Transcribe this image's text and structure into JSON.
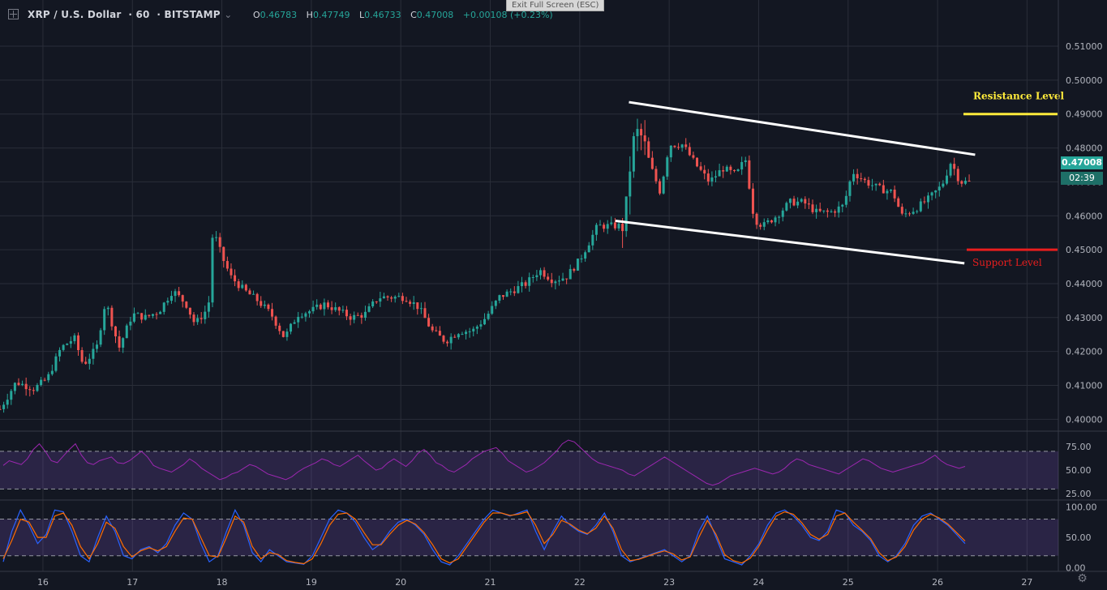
{
  "header": {
    "symbol": "XRP / U.S. Dollar",
    "interval": "60",
    "exchange": "BITSTAMP",
    "open_label": "O",
    "open": "0.46783",
    "high_label": "H",
    "high": "0.47749",
    "low_label": "L",
    "low": "0.46733",
    "close_label": "C",
    "close": "0.47008",
    "change": "+0.00108 (+0.23%)",
    "exit_fullscreen": "Exit Full Screen (ESC)"
  },
  "price_tag": {
    "last": "0.47008",
    "countdown": "02:39"
  },
  "annotations": {
    "resistance": "Resistance Level",
    "support": "Support Level"
  },
  "colors": {
    "bg": "#131722",
    "up": "#26a69a",
    "down": "#ef5350",
    "resistance": "#ffeb3b",
    "support": "#e91e1e",
    "channel": "#ffffff",
    "rsi": "#9c27b0",
    "stoch_k": "#2962ff",
    "stoch_d": "#ff6d00"
  },
  "chart_data": [
    {
      "type": "candlestick",
      "y_ticks": [
        "0.40000",
        "0.41000",
        "0.42000",
        "0.43000",
        "0.44000",
        "0.45000",
        "0.46000",
        "0.47000",
        "0.48000",
        "0.49000",
        "0.50000",
        "0.51000"
      ],
      "x_ticks": [
        "16",
        "17",
        "18",
        "19",
        "20",
        "21",
        "22",
        "23",
        "24",
        "25",
        "26",
        "27"
      ],
      "ylim": [
        0.3965,
        0.5155
      ],
      "xlim": [
        15.52,
        27.35
      ],
      "grid": true,
      "close_path": [
        [
          15.52,
          0.403
        ],
        [
          15.7,
          0.411
        ],
        [
          15.9,
          0.409
        ],
        [
          16.05,
          0.412
        ],
        [
          16.2,
          0.421
        ],
        [
          16.35,
          0.424
        ],
        [
          16.45,
          0.416
        ],
        [
          16.6,
          0.421
        ],
        [
          16.7,
          0.435
        ],
        [
          16.85,
          0.421
        ],
        [
          17.0,
          0.431
        ],
        [
          17.15,
          0.43
        ],
        [
          17.3,
          0.432
        ],
        [
          17.45,
          0.438
        ],
        [
          17.6,
          0.434
        ],
        [
          17.7,
          0.428
        ],
        [
          17.85,
          0.433
        ],
        [
          17.9,
          0.456
        ],
        [
          18.0,
          0.448
        ],
        [
          18.1,
          0.442
        ],
        [
          18.25,
          0.438
        ],
        [
          18.4,
          0.435
        ],
        [
          18.55,
          0.431
        ],
        [
          18.7,
          0.424
        ],
        [
          18.85,
          0.431
        ],
        [
          19.0,
          0.432
        ],
        [
          19.15,
          0.434
        ],
        [
          19.3,
          0.432
        ],
        [
          19.45,
          0.43
        ],
        [
          19.6,
          0.431
        ],
        [
          19.75,
          0.436
        ],
        [
          19.9,
          0.436
        ],
        [
          20.05,
          0.436
        ],
        [
          20.2,
          0.433
        ],
        [
          20.35,
          0.426
        ],
        [
          20.5,
          0.423
        ],
        [
          20.65,
          0.426
        ],
        [
          20.8,
          0.426
        ],
        [
          20.95,
          0.43
        ],
        [
          21.1,
          0.436
        ],
        [
          21.25,
          0.438
        ],
        [
          21.4,
          0.44
        ],
        [
          21.55,
          0.444
        ],
        [
          21.7,
          0.441
        ],
        [
          21.85,
          0.442
        ],
        [
          22.0,
          0.447
        ],
        [
          22.1,
          0.452
        ],
        [
          22.2,
          0.457
        ],
        [
          22.35,
          0.457
        ],
        [
          22.5,
          0.457
        ],
        [
          22.55,
          0.472
        ],
        [
          22.62,
          0.485
        ],
        [
          22.7,
          0.483
        ],
        [
          22.8,
          0.474
        ],
        [
          22.9,
          0.467
        ],
        [
          23.0,
          0.481
        ],
        [
          23.15,
          0.481
        ],
        [
          23.3,
          0.475
        ],
        [
          23.45,
          0.47
        ],
        [
          23.6,
          0.474
        ],
        [
          23.75,
          0.472
        ],
        [
          23.85,
          0.477
        ],
        [
          23.95,
          0.459
        ],
        [
          24.05,
          0.457
        ],
        [
          24.2,
          0.46
        ],
        [
          24.35,
          0.464
        ],
        [
          24.5,
          0.464
        ],
        [
          24.65,
          0.461
        ],
        [
          24.8,
          0.461
        ],
        [
          24.95,
          0.463
        ],
        [
          25.05,
          0.473
        ],
        [
          25.2,
          0.47
        ],
        [
          25.35,
          0.468
        ],
        [
          25.5,
          0.467
        ],
        [
          25.6,
          0.46
        ],
        [
          25.75,
          0.462
        ],
        [
          25.9,
          0.465
        ],
        [
          26.05,
          0.469
        ],
        [
          26.15,
          0.476
        ],
        [
          26.25,
          0.47
        ],
        [
          26.35,
          0.47
        ]
      ],
      "channel_upper": [
        [
          22.55,
          0.4935
        ],
        [
          26.42,
          0.478
        ]
      ],
      "channel_lower": [
        [
          22.4,
          0.4585
        ],
        [
          26.3,
          0.446
        ]
      ],
      "resistance_level": 0.49,
      "support_level": 0.45
    },
    {
      "type": "line",
      "series": [
        {
          "values": [
            55,
            60,
            58,
            56,
            62,
            72,
            78,
            70,
            60,
            58,
            65,
            72,
            78,
            66,
            58,
            56,
            60,
            62,
            64,
            58,
            57,
            60,
            65,
            70,
            64,
            55,
            52,
            50,
            48,
            52,
            56,
            62,
            58,
            52,
            48,
            44,
            40,
            42,
            46,
            48,
            52,
            56,
            54,
            50,
            46,
            44,
            42,
            40,
            43,
            48,
            52,
            55,
            58,
            62,
            60,
            56,
            54,
            58,
            62,
            66,
            60,
            55,
            50,
            52,
            58,
            62,
            58,
            54,
            60,
            68,
            72,
            66,
            58,
            55,
            50,
            48,
            52,
            56,
            62,
            66,
            70,
            72,
            74,
            68,
            60,
            56,
            52,
            48,
            50,
            54,
            58,
            64,
            70,
            78,
            82,
            80,
            74,
            68,
            62,
            58,
            56,
            54,
            52,
            50,
            46,
            44,
            48,
            52,
            56,
            60,
            64,
            60,
            56,
            52,
            48,
            44,
            40,
            36,
            34,
            36,
            40,
            44,
            46,
            48,
            50,
            52,
            50,
            48,
            46,
            48,
            52,
            58,
            62,
            60,
            56,
            54,
            52,
            50,
            48,
            46,
            50,
            54,
            58,
            62,
            60,
            56,
            52,
            50,
            48,
            50,
            52,
            54,
            56,
            58,
            62,
            66,
            60,
            56,
            54,
            52,
            54
          ]
        }
      ],
      "y_ticks": [
        "75.00",
        "50.00",
        "25.00"
      ],
      "ylim": [
        20,
        88
      ],
      "bands": [
        30,
        70
      ]
    },
    {
      "type": "line",
      "series": [
        {
          "values": [
            10,
            60,
            95,
            70,
            40,
            55,
            95,
            92,
            60,
            20,
            10,
            50,
            85,
            60,
            20,
            15,
            30,
            35,
            25,
            40,
            70,
            90,
            80,
            40,
            10,
            20,
            60,
            95,
            70,
            25,
            10,
            30,
            20,
            10,
            8,
            6,
            20,
            50,
            80,
            95,
            90,
            75,
            50,
            30,
            40,
            60,
            75,
            80,
            70,
            55,
            30,
            10,
            5,
            20,
            40,
            60,
            80,
            95,
            90,
            85,
            90,
            95,
            60,
            30,
            60,
            85,
            70,
            60,
            55,
            70,
            90,
            60,
            20,
            10,
            15,
            20,
            25,
            30,
            20,
            10,
            20,
            60,
            85,
            50,
            15,
            10,
            5,
            20,
            40,
            70,
            90,
            95,
            85,
            70,
            50,
            45,
            60,
            95,
            90,
            70,
            60,
            45,
            20,
            10,
            20,
            40,
            70,
            85,
            90,
            80,
            70,
            55,
            40
          ]
        },
        {
          "values": [
            15,
            45,
            80,
            75,
            50,
            50,
            85,
            90,
            70,
            35,
            15,
            40,
            75,
            65,
            35,
            18,
            28,
            33,
            28,
            35,
            60,
            82,
            80,
            50,
            20,
            18,
            50,
            85,
            75,
            35,
            15,
            25,
            22,
            12,
            9,
            7,
            15,
            40,
            70,
            88,
            90,
            80,
            58,
            38,
            38,
            55,
            70,
            78,
            72,
            58,
            38,
            15,
            8,
            15,
            35,
            55,
            75,
            90,
            90,
            86,
            88,
            92,
            70,
            40,
            55,
            78,
            72,
            62,
            56,
            65,
            85,
            65,
            30,
            12,
            14,
            19,
            24,
            28,
            23,
            13,
            18,
            50,
            78,
            55,
            22,
            12,
            8,
            16,
            36,
            62,
            85,
            92,
            88,
            74,
            55,
            47,
            55,
            85,
            90,
            75,
            62,
            48,
            25,
            12,
            18,
            35,
            62,
            80,
            88,
            82,
            72,
            58,
            44
          ]
        }
      ],
      "y_ticks": [
        "100.00",
        "50.00",
        "0.00"
      ],
      "ylim": [
        -3,
        106
      ],
      "bands": [
        20,
        80
      ]
    }
  ]
}
